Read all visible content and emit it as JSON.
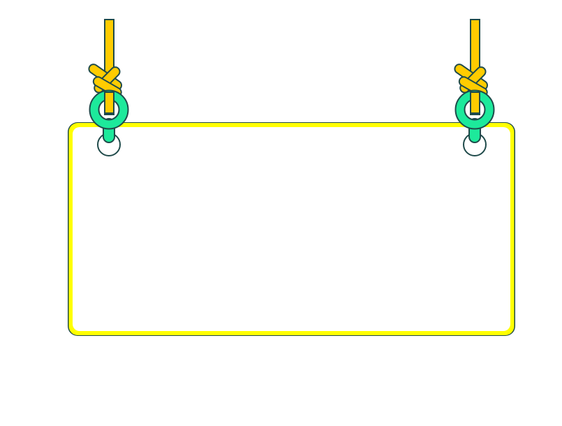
{
  "sign": {
    "message": "",
    "colors": {
      "board_fill": "#ffffff",
      "board_border": "#ffff00",
      "board_outline": "#1f4a4a",
      "rope": "#ffcc00",
      "ring": "#1de99b",
      "outline": "#1f4a4a"
    }
  }
}
